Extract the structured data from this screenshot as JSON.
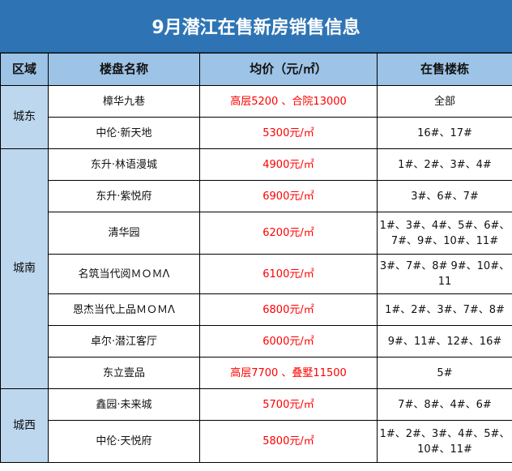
{
  "title": "9月潜江在售新房销售信息",
  "headers": {
    "region": "区域",
    "name": "楼盘名称",
    "price": "均价（元/㎡）",
    "buildings": "在售楼栋"
  },
  "colors": {
    "title_bg": "#2e74b5",
    "header_bg": "#9dc3e6",
    "region_bg": "#bdd7ee",
    "price_text": "#ff0000"
  },
  "regions": [
    {
      "name": "城东",
      "rows": [
        {
          "name": "樟华九巷",
          "price": "高层5200 、合院13000",
          "buildings": "全部"
        },
        {
          "name": "中伦·新天地",
          "price": "5300元/㎡",
          "buildings": "16#、17#"
        }
      ]
    },
    {
      "name": "城南",
      "rows": [
        {
          "name": "东升·林语漫城",
          "price": "4900元/㎡",
          "buildings": "1#、2#、3#、4#"
        },
        {
          "name": "东升·紫悦府",
          "price": "6900元/㎡",
          "buildings": "3#、6#、7#"
        },
        {
          "name": "清华园",
          "price": "6200元/㎡",
          "buildings": "1#、3#、4#、5#、6#、7#、9#、10#、11#"
        },
        {
          "name": "名筑当代阅ＭＯＭΛ",
          "price": "6100元/㎡",
          "buildings": "3#、7#、8# 9#、10#、11"
        },
        {
          "name": "恩杰当代上品ＭＯＭΛ",
          "price": "6800元/㎡",
          "buildings": "1#、2#、3#、7#、8#"
        },
        {
          "name": "卓尔·潜江客厅",
          "price": "6000元/㎡",
          "buildings": "9#、11#、12#、16#"
        },
        {
          "name": "东立壹品",
          "price": "高层7700 、叠墅11500",
          "buildings": "5#"
        }
      ]
    },
    {
      "name": "城西",
      "rows": [
        {
          "name": "鑫园·未来城",
          "price": "5700元/㎡",
          "buildings": "7#、8#、4#、6#"
        },
        {
          "name": "中伦·天悦府",
          "price": "5800元/㎡",
          "buildings": "1#、2#、3#、4#、5#、10#、11#"
        }
      ]
    }
  ]
}
